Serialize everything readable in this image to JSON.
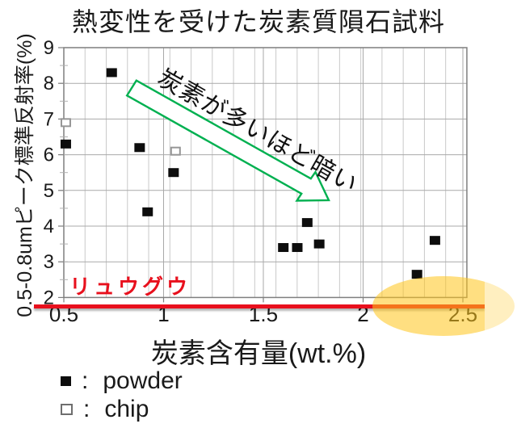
{
  "title": "熱変性を受けた炭素質隕石試料",
  "chart_data": {
    "type": "scatter",
    "title": "熱変性を受けた炭素質隕石試料",
    "xlabel": "炭素含有量(wt.%)",
    "ylabel": "0.5-0.8umピーク標準反射率(%)",
    "xlim": [
      0.5,
      2.52
    ],
    "ylim": [
      2,
      9
    ],
    "x_ticks": [
      "0.5",
      "1",
      "1.5",
      "2",
      "2.5"
    ],
    "x_tick_values": [
      0.5,
      1,
      1.5,
      2,
      2.5
    ],
    "y_ticks": [
      "2",
      "3",
      "4",
      "5",
      "6",
      "7",
      "8",
      "9"
    ],
    "y_tick_values": [
      2,
      3,
      4,
      5,
      6,
      7,
      8,
      9
    ],
    "grid": true,
    "legend_position": "below",
    "series": [
      {
        "name": "powder",
        "marker": "filled-square",
        "color": "#0d0d0d",
        "points": [
          [
            0.51,
            6.3
          ],
          [
            0.74,
            8.3
          ],
          [
            0.88,
            6.2
          ],
          [
            0.92,
            4.4
          ],
          [
            1.05,
            5.5
          ],
          [
            1.6,
            3.4
          ],
          [
            1.67,
            3.4
          ],
          [
            1.72,
            4.1
          ],
          [
            1.78,
            3.5
          ],
          [
            2.27,
            2.65
          ],
          [
            2.36,
            3.6
          ]
        ]
      },
      {
        "name": "chip",
        "marker": "open-square",
        "color": "#969696",
        "points": [
          [
            0.51,
            6.9
          ],
          [
            1.06,
            6.1
          ]
        ]
      }
    ],
    "reference_line": {
      "label": "リュウグウ",
      "y": 2,
      "color": "#e8101d"
    },
    "highlight_ellipse": {
      "x_range": [
        2.05,
        2.6
      ],
      "y_center": 2,
      "color": "#ffc51a"
    }
  },
  "annotations": {
    "arrow_text": "炭素が多いほど暗い"
  },
  "legend": {
    "rows": [
      {
        "marker": "filled-square",
        "sep": ":",
        "label": "powder"
      },
      {
        "marker": "open-square",
        "sep": ":",
        "label": "chip"
      }
    ]
  },
  "colors": {
    "red": "#e8101d",
    "green": "#00b050",
    "highlight": "#ffc51a",
    "grid_minor": "#c9c9c9",
    "grid_major": "#a9a9a9",
    "border": "#7f7f7f",
    "tick_text": "#1a1a1a"
  }
}
